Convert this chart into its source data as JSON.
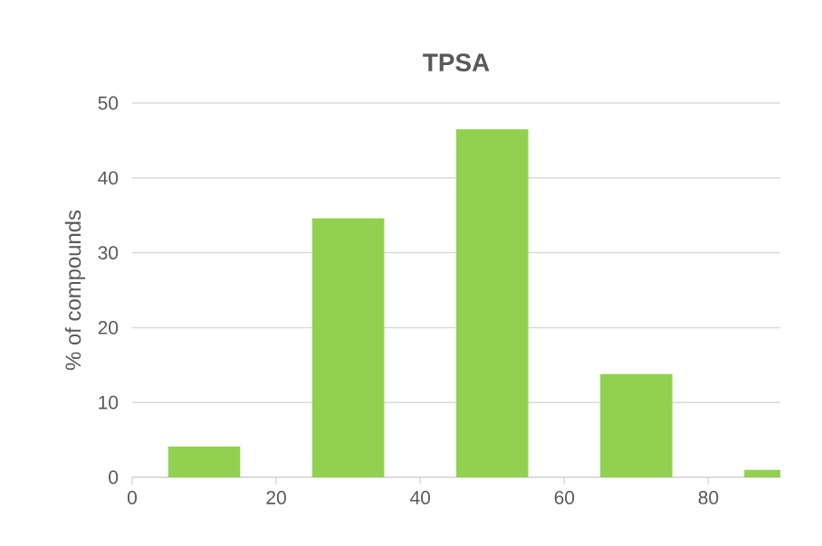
{
  "chart_data": {
    "type": "bar",
    "title": "TPSA",
    "ylabel": "% of compounds",
    "x": [
      10,
      30,
      50,
      70,
      90
    ],
    "values": [
      4.1,
      34.6,
      46.5,
      13.8,
      1.0
    ],
    "color": "#92d050",
    "xlim": [
      0,
      90
    ],
    "xticks": [
      0,
      20,
      40,
      60,
      80
    ],
    "ylim": [
      0,
      50
    ],
    "yticks": [
      0,
      10,
      20,
      30,
      40,
      50
    ],
    "grid": "y"
  }
}
